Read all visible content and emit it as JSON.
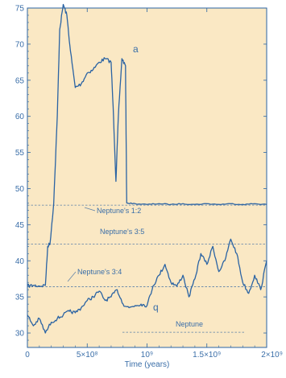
{
  "chart_data": {
    "type": "line",
    "title": "",
    "xlabel": "Time (years)",
    "ylabel": "",
    "xlim": [
      0,
      2000000000
    ],
    "ylim": [
      28,
      75
    ],
    "grid": false,
    "colors": {
      "background": "#fae8c4",
      "series": "#2a63a3",
      "text": "#3a6ea8",
      "reference": "#5a7fa8"
    },
    "x_ticks": [
      {
        "value": 0,
        "label": "0"
      },
      {
        "value": 500000000,
        "label": "5×10⁸"
      },
      {
        "value": 1000000000,
        "label": "10⁹"
      },
      {
        "value": 1500000000,
        "label": "1.5×10⁹"
      },
      {
        "value": 2000000000,
        "label": "2×10⁹"
      }
    ],
    "y_ticks": [
      30,
      35,
      40,
      45,
      50,
      55,
      60,
      65,
      70,
      75
    ],
    "series": [
      {
        "name": "a",
        "x": [
          0,
          50000000,
          100000000,
          150000000,
          170000000,
          190000000,
          220000000,
          250000000,
          270000000,
          300000000,
          330000000,
          360000000,
          400000000,
          450000000,
          500000000,
          550000000,
          600000000,
          650000000,
          700000000,
          720000000,
          740000000,
          760000000,
          790000000,
          820000000,
          830000000,
          900000000,
          1000000000,
          1100000000,
          1200000000,
          1300000000,
          1400000000,
          1500000000,
          1600000000,
          1700000000,
          1800000000,
          1900000000,
          2000000000
        ],
        "values": [
          36.5,
          36.6,
          36.5,
          36.6,
          42.0,
          42.5,
          48.0,
          60.0,
          72.0,
          75.5,
          74.0,
          69.0,
          64.0,
          64.5,
          66.0,
          66.5,
          67.5,
          68.0,
          67.5,
          60.0,
          51.0,
          60.0,
          68.0,
          67.0,
          48.0,
          47.9,
          47.8,
          47.9,
          47.8,
          47.9,
          47.8,
          47.9,
          47.8,
          47.9,
          47.8,
          47.9,
          47.8
        ]
      },
      {
        "name": "q",
        "x": [
          0,
          50000000,
          100000000,
          150000000,
          200000000,
          250000000,
          300000000,
          350000000,
          400000000,
          450000000,
          500000000,
          550000000,
          600000000,
          650000000,
          700000000,
          750000000,
          800000000,
          850000000,
          900000000,
          950000000,
          1000000000,
          1050000000,
          1100000000,
          1150000000,
          1200000000,
          1250000000,
          1300000000,
          1350000000,
          1400000000,
          1450000000,
          1500000000,
          1550000000,
          1600000000,
          1650000000,
          1700000000,
          1750000000,
          1800000000,
          1850000000,
          1900000000,
          1950000000,
          2000000000
        ],
        "values": [
          32.5,
          31.0,
          32.0,
          30.0,
          31.5,
          32.0,
          32.5,
          33.0,
          32.8,
          33.5,
          34.5,
          35.0,
          35.8,
          34.5,
          35.0,
          36.0,
          34.0,
          33.5,
          33.8,
          34.0,
          33.8,
          36.5,
          38.0,
          39.5,
          37.0,
          36.5,
          38.0,
          35.0,
          37.5,
          41.0,
          39.5,
          42.0,
          38.5,
          40.0,
          43.0,
          41.0,
          37.0,
          35.5,
          38.0,
          36.0,
          40.0
        ]
      }
    ],
    "reference_lines": [
      {
        "label": "Neptune's 1:2",
        "y": 47.7
      },
      {
        "label": "Neptune's 3:5",
        "y": 42.3
      },
      {
        "label": "Neptune's 3:4",
        "y": 36.4
      },
      {
        "label": "Neptune",
        "y": 30.1
      }
    ],
    "series_labels": [
      {
        "text": "a"
      },
      {
        "text": "q"
      }
    ]
  }
}
